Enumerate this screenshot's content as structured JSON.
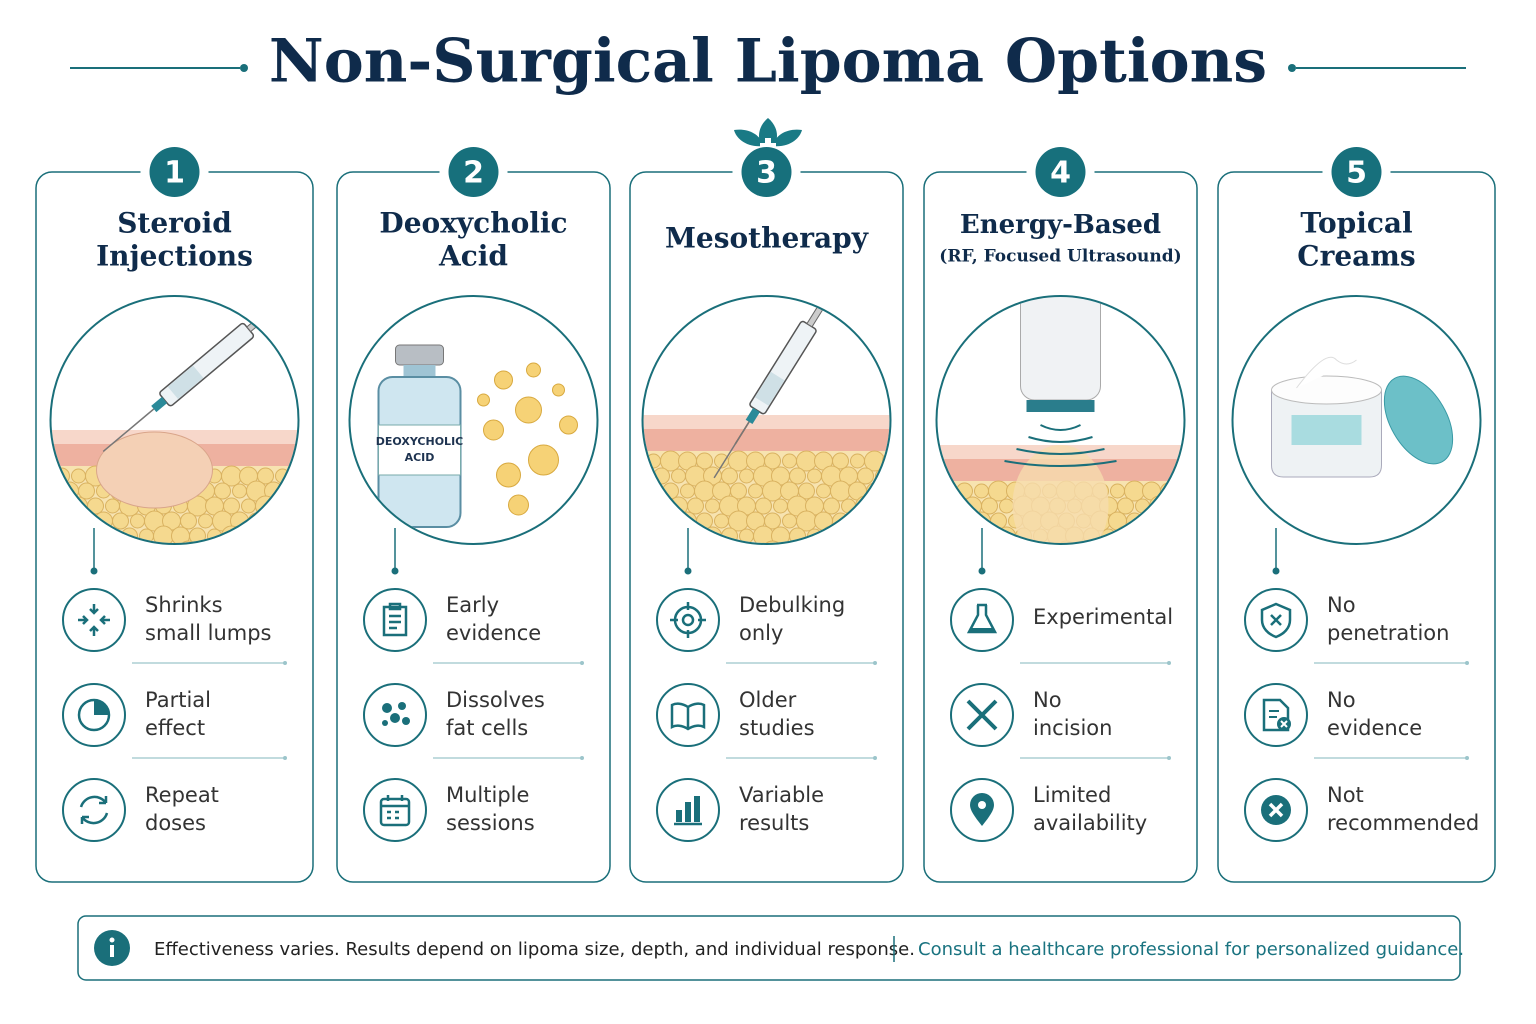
{
  "header": {
    "title": "Non-Surgical Lipoma Options"
  },
  "options": [
    {
      "number": 1,
      "title_lines": [
        "Steroid",
        "Injections"
      ],
      "points": [
        {
          "lines": [
            "Shrinks",
            "small lumps"
          ]
        },
        {
          "lines": [
            "Partial",
            "effect"
          ]
        },
        {
          "lines": [
            "Repeat",
            "doses"
          ]
        }
      ]
    },
    {
      "number": 2,
      "title_lines": [
        "Deoxycholic",
        "Acid"
      ],
      "vial_label": [
        "DEOXYCHOLIC",
        "ACID"
      ],
      "points": [
        {
          "lines": [
            "Early",
            "evidence"
          ]
        },
        {
          "lines": [
            "Dissolves",
            "fat cells"
          ]
        },
        {
          "lines": [
            "Multiple",
            "sessions"
          ]
        }
      ]
    },
    {
      "number": 3,
      "title_lines": [
        "Mesotherapy"
      ],
      "points": [
        {
          "lines": [
            "Debulking",
            "only"
          ]
        },
        {
          "lines": [
            "Older",
            "studies"
          ]
        },
        {
          "lines": [
            "Variable",
            "results"
          ]
        }
      ]
    },
    {
      "number": 4,
      "title_lines": [
        "Energy-Based"
      ],
      "subtitle": "(RF, Focused Ultrasound)",
      "points": [
        {
          "lines": [
            "Experimental"
          ]
        },
        {
          "lines": [
            "No",
            "incision"
          ]
        },
        {
          "lines": [
            "Limited",
            "availability"
          ]
        }
      ]
    },
    {
      "number": 5,
      "title_lines": [
        "Topical",
        "Creams"
      ],
      "points": [
        {
          "lines": [
            "No",
            "penetration"
          ]
        },
        {
          "lines": [
            "No",
            "evidence"
          ]
        },
        {
          "lines": [
            "Not",
            "recommended"
          ]
        }
      ]
    }
  ],
  "footer": {
    "note": "Effectiveness varies. Results depend on lipoma size, depth, and individual response.",
    "advice": "Consult a healthcare professional for personalized guidance."
  }
}
